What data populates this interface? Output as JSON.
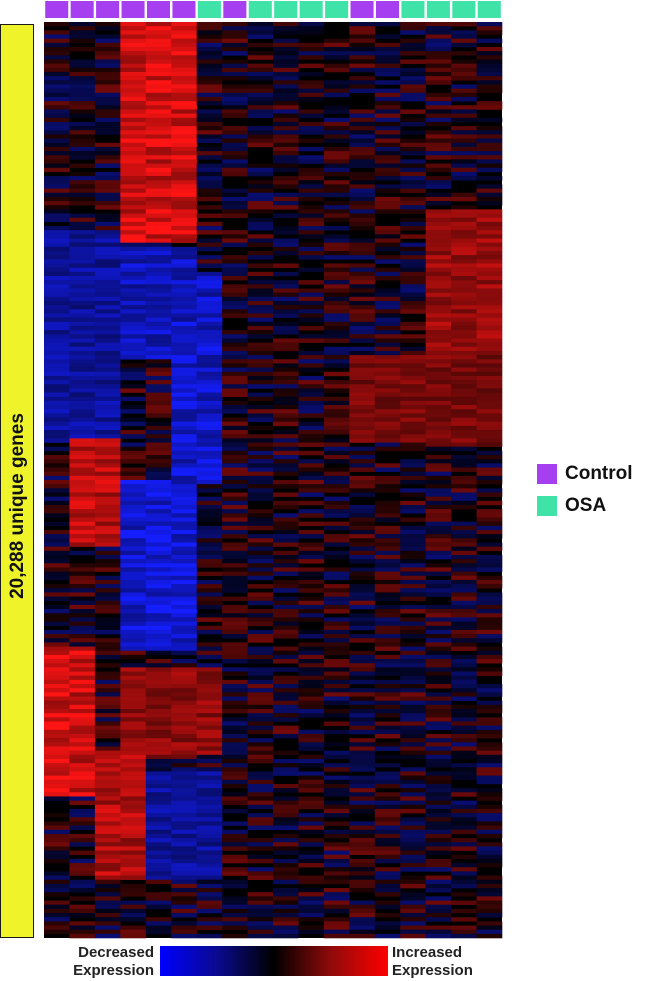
{
  "chart_data": {
    "type": "heatmap",
    "title": "",
    "ylabel": "20,288 unique genes",
    "columns": [
      {
        "group": "Control"
      },
      {
        "group": "Control"
      },
      {
        "group": "Control"
      },
      {
        "group": "Control"
      },
      {
        "group": "Control"
      },
      {
        "group": "Control"
      },
      {
        "group": "OSA"
      },
      {
        "group": "Control"
      },
      {
        "group": "OSA"
      },
      {
        "group": "OSA"
      },
      {
        "group": "OSA"
      },
      {
        "group": "OSA"
      },
      {
        "group": "Control"
      },
      {
        "group": "Control"
      },
      {
        "group": "OSA"
      },
      {
        "group": "OSA"
      },
      {
        "group": "OSA"
      },
      {
        "group": "OSA"
      }
    ],
    "legend": [
      {
        "label": "Control",
        "color": "#a63ff0"
      },
      {
        "label": "OSA",
        "color": "#3fe3a8"
      }
    ],
    "legend_position": "right",
    "color_scale": {
      "low_label": "Decreased Expression",
      "high_label": "Increased Expression",
      "colors": [
        "#0000ff",
        "#000000",
        "#ff0000"
      ]
    }
  }
}
